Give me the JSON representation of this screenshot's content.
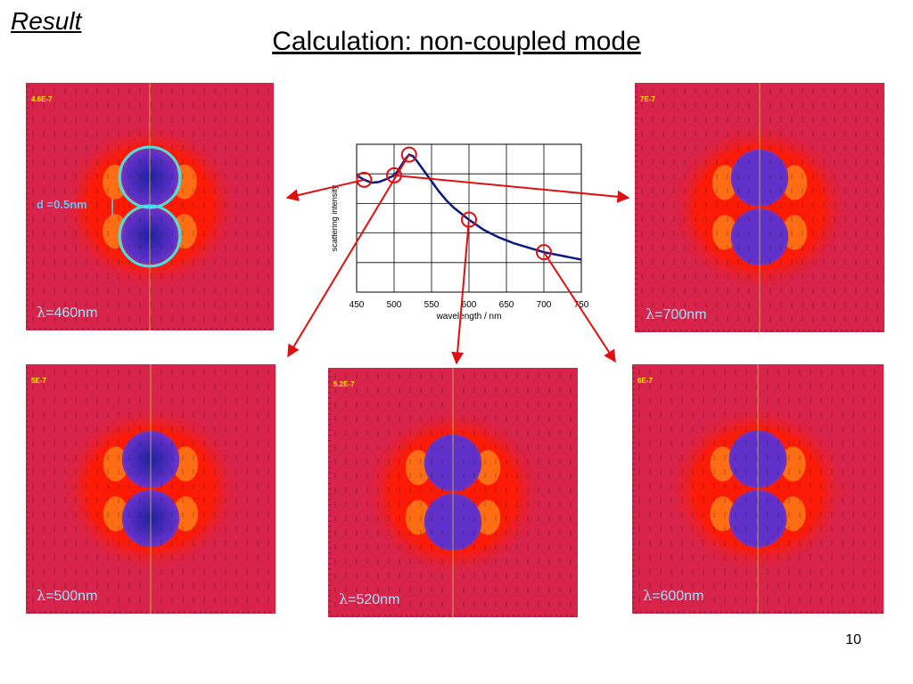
{
  "heading": "Result",
  "title": "Calculation:  non-coupled mode",
  "gap_label": "d =0.5nm",
  "page_number": "10",
  "panels": [
    {
      "id": "p460",
      "scale": "4.6E-7",
      "lambda": "=460nm",
      "lambda_symbol": "λ"
    },
    {
      "id": "p700",
      "scale": "7E-7",
      "lambda": "=700nm",
      "lambda_symbol": "λ"
    },
    {
      "id": "p500",
      "scale": "5E-7",
      "lambda": "=500nm",
      "lambda_symbol": "λ"
    },
    {
      "id": "p520",
      "scale": "5.2E-7",
      "lambda": "=520nm",
      "lambda_symbol": "λ"
    },
    {
      "id": "p600",
      "scale": "6E-7",
      "lambda": "=600nm",
      "lambda_symbol": "λ"
    }
  ],
  "colors": {
    "field_background": "#d8234a",
    "field_outer_glow": "#ff1a00",
    "field_hot": "#ff8a1a",
    "particle_core": "#6030c8",
    "particle_dark": "#2020a0",
    "particle_outline_highlight": "#45e0f0",
    "arrow": "#c0102a",
    "curve": "#0a1a80",
    "marker": "#e01010"
  },
  "chart_data": {
    "type": "line",
    "xlabel": "wavelength / nm",
    "ylabel": "scattering intensity",
    "xlim": [
      450,
      750
    ],
    "x_ticks": [
      "450",
      "500",
      "550",
      "600",
      "650",
      "700",
      "750"
    ],
    "y_gridlines": 5,
    "series": [
      {
        "x": [
          450,
          460,
          470,
          480,
          490,
          500,
          505,
          510,
          515,
          520,
          525,
          530,
          540,
          550,
          560,
          570,
          580,
          590,
          600,
          620,
          640,
          660,
          680,
          700,
          720,
          740,
          750
        ],
        "y": [
          0.79,
          0.76,
          0.74,
          0.745,
          0.765,
          0.79,
          0.82,
          0.86,
          0.9,
          0.93,
          0.92,
          0.89,
          0.82,
          0.75,
          0.68,
          0.62,
          0.57,
          0.53,
          0.49,
          0.42,
          0.37,
          0.33,
          0.3,
          0.27,
          0.25,
          0.23,
          0.22
        ]
      }
    ],
    "highlighted_points": [
      {
        "x": 460,
        "y": 0.76
      },
      {
        "x": 500,
        "y": 0.79
      },
      {
        "x": 520,
        "y": 0.93
      },
      {
        "x": 600,
        "y": 0.49
      },
      {
        "x": 700,
        "y": 0.27
      }
    ],
    "ylim": [
      0,
      1
    ]
  }
}
